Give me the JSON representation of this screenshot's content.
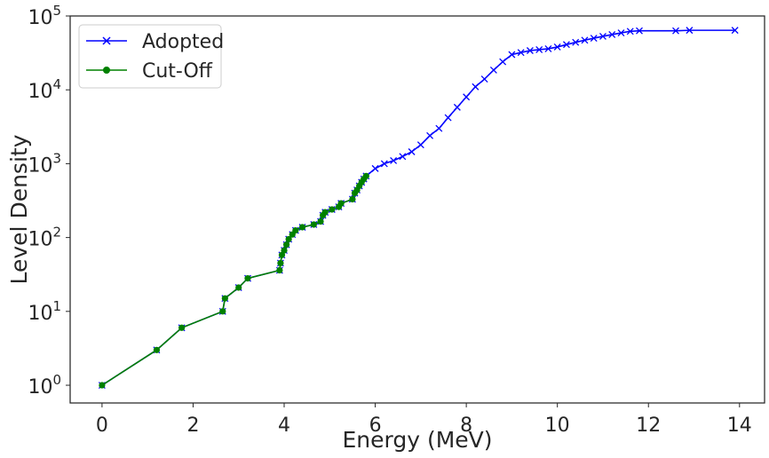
{
  "chart_data": {
    "type": "line",
    "xlabel": "Energy (MeV)",
    "ylabel": "Level Density",
    "xlim": [
      -0.7,
      14.55
    ],
    "ylim_log10": [
      -0.24,
      5
    ],
    "y_scale": "log",
    "grid": false,
    "legend_placement": "top-left",
    "x_ticks": [
      0,
      2,
      4,
      6,
      8,
      10,
      12,
      14
    ],
    "x_tick_labels": [
      "0",
      "2",
      "4",
      "6",
      "8",
      "10",
      "12",
      "14"
    ],
    "y_ticks": [
      1,
      10,
      100,
      1000,
      10000,
      100000
    ],
    "y_tick_labels": [
      {
        "base": "10",
        "exp": "0"
      },
      {
        "base": "10",
        "exp": "1"
      },
      {
        "base": "10",
        "exp": "2"
      },
      {
        "base": "10",
        "exp": "3"
      },
      {
        "base": "10",
        "exp": "4"
      },
      {
        "base": "10",
        "exp": "5"
      }
    ],
    "series": [
      {
        "name": "Adopted",
        "color": "#0000ff",
        "marker": "x",
        "x": [
          0,
          1.2,
          1.75,
          2.65,
          2.7,
          3.0,
          3.2,
          3.9,
          3.92,
          3.95,
          4.0,
          4.05,
          4.1,
          4.18,
          4.25,
          4.4,
          4.65,
          4.8,
          4.85,
          4.9,
          5.05,
          5.2,
          5.25,
          5.5,
          5.55,
          5.6,
          5.65,
          5.7,
          5.75,
          5.8,
          6.0,
          6.2,
          6.4,
          6.6,
          6.8,
          7.0,
          7.2,
          7.4,
          7.6,
          7.8,
          8.0,
          8.2,
          8.4,
          8.6,
          8.8,
          9.0,
          9.2,
          9.4,
          9.6,
          9.8,
          10.0,
          10.2,
          10.4,
          10.6,
          10.8,
          11.0,
          11.2,
          11.4,
          11.6,
          11.8,
          12.6,
          12.9,
          13.9
        ],
        "y": [
          1,
          3,
          6,
          10,
          15,
          21,
          28,
          36,
          45,
          58,
          67,
          80,
          95,
          110,
          125,
          138,
          150,
          165,
          200,
          220,
          240,
          260,
          290,
          330,
          400,
          440,
          500,
          560,
          620,
          680,
          860,
          1000,
          1100,
          1250,
          1450,
          1800,
          2400,
          3000,
          4200,
          5800,
          8000,
          11000,
          14000,
          18500,
          24000,
          30000,
          32000,
          34000,
          35000,
          36000,
          38000,
          41000,
          44000,
          47000,
          50000,
          53000,
          56000,
          59000,
          62000,
          63000,
          63000,
          64000,
          64000
        ]
      },
      {
        "name": "Cut-Off",
        "color": "#008000",
        "marker": "o",
        "x": [
          0,
          1.2,
          1.75,
          2.65,
          2.7,
          3.0,
          3.2,
          3.9,
          3.92,
          3.95,
          4.0,
          4.05,
          4.1,
          4.18,
          4.25,
          4.4,
          4.65,
          4.8,
          4.85,
          4.9,
          5.05,
          5.2,
          5.25,
          5.5,
          5.55,
          5.6,
          5.65,
          5.7,
          5.75,
          5.8
        ],
        "y": [
          1,
          3,
          6,
          10,
          15,
          21,
          28,
          36,
          45,
          58,
          67,
          80,
          95,
          110,
          125,
          138,
          150,
          165,
          200,
          220,
          240,
          260,
          290,
          330,
          400,
          440,
          500,
          560,
          620,
          680
        ]
      }
    ]
  }
}
